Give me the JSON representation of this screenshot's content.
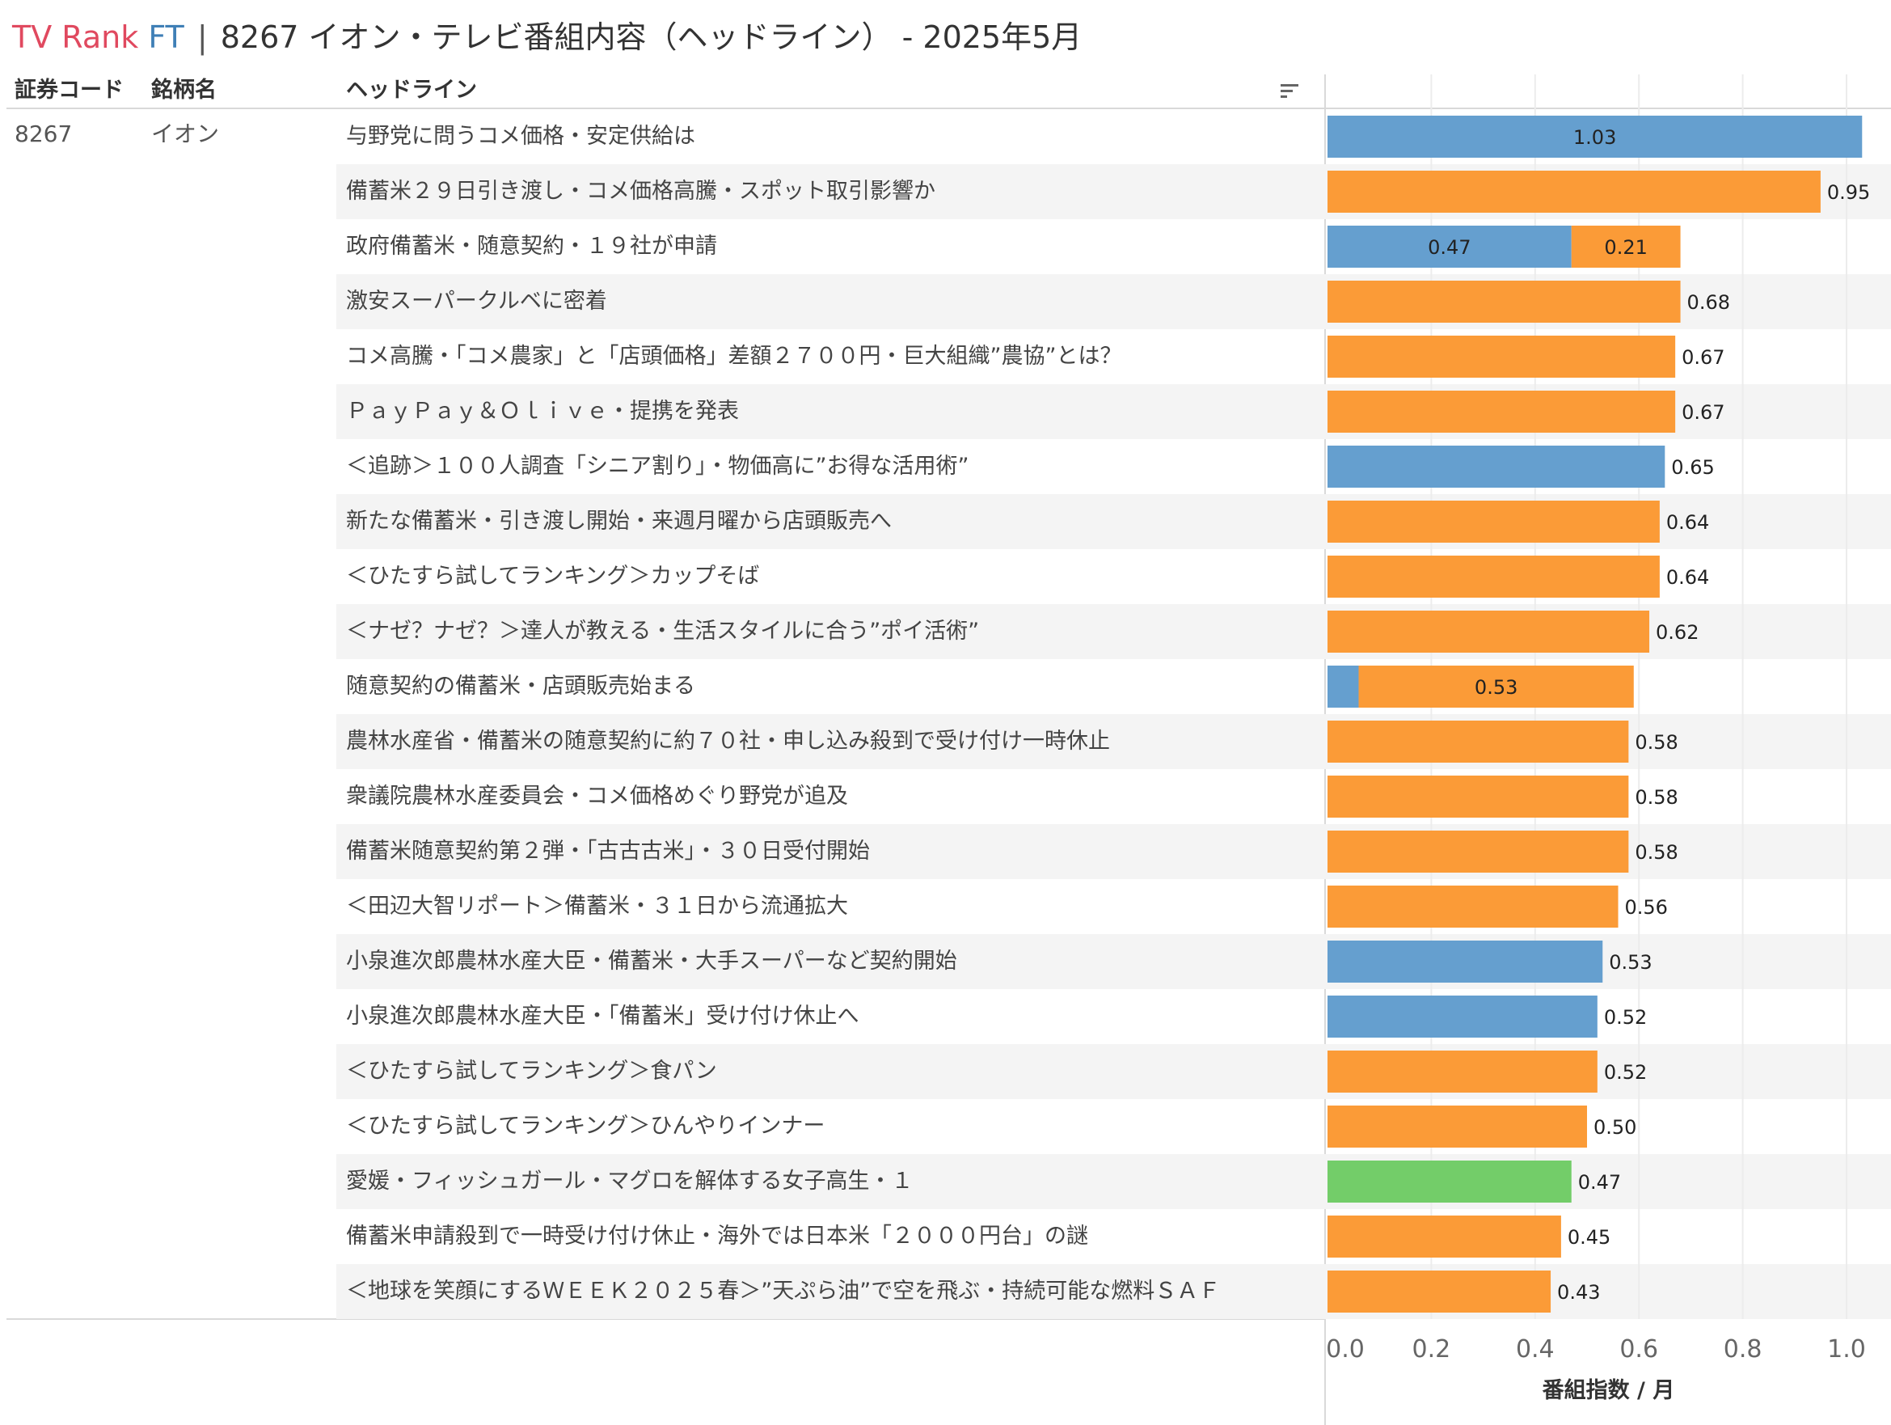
{
  "header": {
    "brand_tv": "TV Rank",
    "brand_ft": "FT",
    "separator": "|",
    "title": "8267 イオン・テレビ番組内容（ヘッドライン） - 2025年5月"
  },
  "columns": {
    "code": "証券コード",
    "name": "銘柄名",
    "headline": "ヘッドライン"
  },
  "stock": {
    "code": "8267",
    "name": "イオン"
  },
  "icons": {
    "sort": "sort-descending-icon"
  },
  "colors": {
    "blue": "#659fcf",
    "orange": "#fb9b37",
    "green": "#73cd69",
    "row_alt": "#f4f4f4",
    "grid": "#ececec"
  },
  "chart_data": {
    "type": "bar",
    "orientation": "horizontal",
    "stacked": true,
    "xlabel": "番組指数 / 月",
    "xlim": [
      0,
      1.05
    ],
    "xticks": [
      "0.0",
      "0.2",
      "0.4",
      "0.6",
      "0.8",
      "1.0"
    ],
    "grid": true,
    "rows": [
      {
        "headline": "与野党に問うコメ価格・安定供給は",
        "segments": [
          {
            "color": "blue",
            "value": 1.03,
            "label": "1.03"
          }
        ],
        "total": 1.03,
        "total_label": ""
      },
      {
        "headline": "備蓄米２９日引き渡し・コメ価格高騰・スポット取引影響か",
        "segments": [
          {
            "color": "orange",
            "value": 0.95,
            "label": ""
          }
        ],
        "total": 0.95,
        "total_label": "0.95"
      },
      {
        "headline": "政府備蓄米・随意契約・１９社が申請",
        "segments": [
          {
            "color": "blue",
            "value": 0.47,
            "label": "0.47"
          },
          {
            "color": "orange",
            "value": 0.21,
            "label": "0.21"
          }
        ],
        "total": 0.68,
        "total_label": ""
      },
      {
        "headline": "激安スーパークルベに密着",
        "segments": [
          {
            "color": "orange",
            "value": 0.68,
            "label": ""
          }
        ],
        "total": 0.68,
        "total_label": "0.68"
      },
      {
        "headline": "コメ高騰・「コメ農家」と「店頭価格」差額２７００円・巨大組織”農協”とは？",
        "segments": [
          {
            "color": "orange",
            "value": 0.67,
            "label": ""
          }
        ],
        "total": 0.67,
        "total_label": "0.67"
      },
      {
        "headline": "ＰａｙＰａｙ＆Ｏｌｉｖｅ・提携を発表",
        "segments": [
          {
            "color": "orange",
            "value": 0.67,
            "label": ""
          }
        ],
        "total": 0.67,
        "total_label": "0.67"
      },
      {
        "headline": "＜追跡＞１００人調査「シニア割り」・物価高に”お得な活用術”",
        "segments": [
          {
            "color": "blue",
            "value": 0.65,
            "label": ""
          }
        ],
        "total": 0.65,
        "total_label": "0.65"
      },
      {
        "headline": "新たな備蓄米・引き渡し開始・来週月曜から店頭販売へ",
        "segments": [
          {
            "color": "orange",
            "value": 0.64,
            "label": ""
          }
        ],
        "total": 0.64,
        "total_label": "0.64"
      },
      {
        "headline": "＜ひたすら試してランキング＞カップそば",
        "segments": [
          {
            "color": "orange",
            "value": 0.64,
            "label": ""
          }
        ],
        "total": 0.64,
        "total_label": "0.64"
      },
      {
        "headline": "＜ナゼ？ナゼ？＞達人が教える・生活スタイルに合う”ポイ活術”",
        "segments": [
          {
            "color": "orange",
            "value": 0.62,
            "label": ""
          }
        ],
        "total": 0.62,
        "total_label": "0.62"
      },
      {
        "headline": "随意契約の備蓄米・店頭販売始まる",
        "segments": [
          {
            "color": "blue",
            "value": 0.06,
            "label": ""
          },
          {
            "color": "orange",
            "value": 0.53,
            "label": "0.53"
          }
        ],
        "total": 0.59,
        "total_label": ""
      },
      {
        "headline": "農林水産省・備蓄米の随意契約に約７０社・申し込み殺到で受け付け一時休止",
        "segments": [
          {
            "color": "orange",
            "value": 0.58,
            "label": ""
          }
        ],
        "total": 0.58,
        "total_label": "0.58"
      },
      {
        "headline": "衆議院農林水産委員会・コメ価格めぐり野党が追及",
        "segments": [
          {
            "color": "orange",
            "value": 0.58,
            "label": ""
          }
        ],
        "total": 0.58,
        "total_label": "0.58"
      },
      {
        "headline": "備蓄米随意契約第２弾・「古古古米」・３０日受付開始",
        "segments": [
          {
            "color": "orange",
            "value": 0.58,
            "label": ""
          }
        ],
        "total": 0.58,
        "total_label": "0.58"
      },
      {
        "headline": "＜田辺大智リポート＞備蓄米・３１日から流通拡大",
        "segments": [
          {
            "color": "orange",
            "value": 0.56,
            "label": ""
          }
        ],
        "total": 0.56,
        "total_label": "0.56"
      },
      {
        "headline": "小泉進次郎農林水産大臣・備蓄米・大手スーパーなど契約開始",
        "segments": [
          {
            "color": "blue",
            "value": 0.53,
            "label": ""
          }
        ],
        "total": 0.53,
        "total_label": "0.53"
      },
      {
        "headline": "小泉進次郎農林水産大臣・「備蓄米」受け付け休止へ",
        "segments": [
          {
            "color": "blue",
            "value": 0.52,
            "label": ""
          }
        ],
        "total": 0.52,
        "total_label": "0.52"
      },
      {
        "headline": "＜ひたすら試してランキング＞食パン",
        "segments": [
          {
            "color": "orange",
            "value": 0.52,
            "label": ""
          }
        ],
        "total": 0.52,
        "total_label": "0.52"
      },
      {
        "headline": "＜ひたすら試してランキング＞ひんやりインナー",
        "segments": [
          {
            "color": "orange",
            "value": 0.5,
            "label": ""
          }
        ],
        "total": 0.5,
        "total_label": "0.50"
      },
      {
        "headline": "愛媛・フィッシュガール・マグロを解体する女子高生・１",
        "segments": [
          {
            "color": "green",
            "value": 0.47,
            "label": ""
          }
        ],
        "total": 0.47,
        "total_label": "0.47"
      },
      {
        "headline": "備蓄米申請殺到で一時受け付け休止・海外では日本米「２０００円台」の謎",
        "segments": [
          {
            "color": "orange",
            "value": 0.45,
            "label": ""
          }
        ],
        "total": 0.45,
        "total_label": "0.45"
      },
      {
        "headline": "＜地球を笑顔にするＷＥＥＫ２０２５春＞”天ぷら油”で空を飛ぶ・持続可能な燃料ＳＡＦ",
        "segments": [
          {
            "color": "orange",
            "value": 0.43,
            "label": ""
          }
        ],
        "total": 0.43,
        "total_label": "0.43"
      }
    ]
  }
}
